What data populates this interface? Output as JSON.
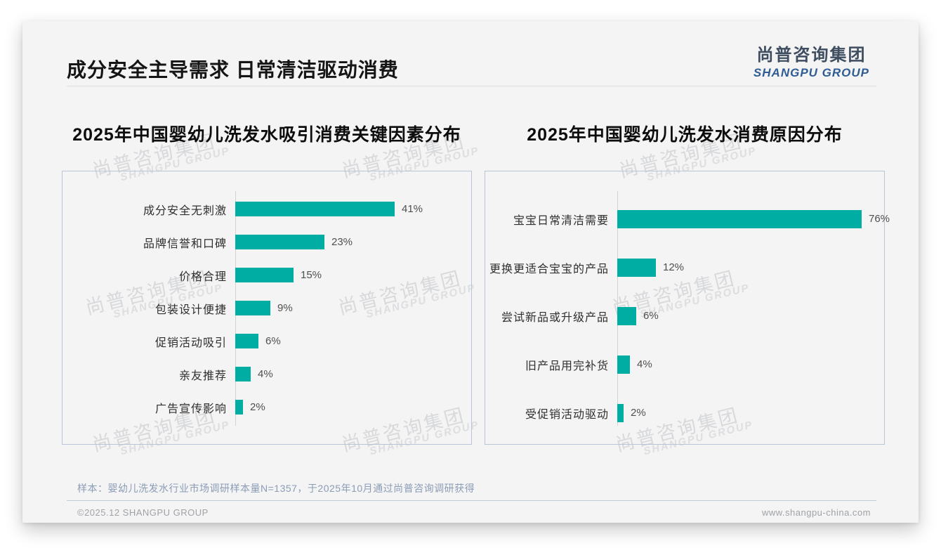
{
  "page": {
    "title": "成分安全主导需求 日常清洁驱动消费",
    "logo": {
      "cn": "尚普咨询集团",
      "en": "SHANGPU GROUP"
    },
    "watermark": {
      "cn": "尚普咨询集团",
      "en": "SHANGPU GROUP"
    },
    "note": "样本：婴幼儿洗发水行业市场调研样本量N=1357，于2025年10月通过尚普咨询调研获得",
    "footer_left": "©2025.12 SHANGPU GROUP",
    "footer_right": "www.shangpu-china.com"
  },
  "colors": {
    "bar": "#00ada3",
    "card_background": "#f4f4f5",
    "box_border": "#b9c5d4",
    "logo_cn": "#3e4d60",
    "logo_en": "#2f5c92",
    "note_text": "#8b9cb5"
  },
  "chart_data": [
    {
      "type": "bar",
      "orientation": "horizontal",
      "title": "2025年中国婴幼儿洗发水吸引消费关键因素分布",
      "categories": [
        "成分安全无刺激",
        "品牌信誉和口碑",
        "价格合理",
        "包装设计便捷",
        "促销活动吸引",
        "亲友推荐",
        "广告宣传影响"
      ],
      "values": [
        41,
        23,
        15,
        9,
        6,
        4,
        2
      ],
      "unit": "%",
      "xlim": [
        0,
        100
      ],
      "bar_color": "#00ada3",
      "value_labels": true,
      "grid": false,
      "legend": false
    },
    {
      "type": "bar",
      "orientation": "horizontal",
      "title": "2025年中国婴幼儿洗发水消费原因分布",
      "categories": [
        "宝宝日常清洁需要",
        "更换更适合宝宝的产品",
        "尝试新品或升级产品",
        "旧产品用完补货",
        "受促销活动驱动"
      ],
      "values": [
        76,
        12,
        6,
        4,
        2
      ],
      "unit": "%",
      "xlim": [
        0,
        100
      ],
      "bar_color": "#00ada3",
      "value_labels": true,
      "grid": false,
      "legend": false
    }
  ]
}
